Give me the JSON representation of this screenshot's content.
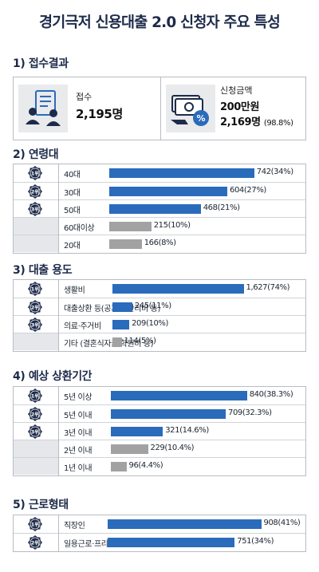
{
  "title": "경기극저 신용대출 2.0 신청자 주요 특성",
  "section1": {
    "title": "1) 접수결과",
    "receipt_label": "접수",
    "receipt_value": "2,195명",
    "amount_label": "신청금액",
    "amount_value": "200만원",
    "amount_count": "2,169명",
    "amount_pct": "(98.8%)"
  },
  "chart_data": [
    {
      "type": "bar",
      "title": "2) 연령대",
      "categories": [
        "40대",
        "30대",
        "50대",
        "60대이상",
        "20대"
      ],
      "values": [
        742,
        604,
        468,
        215,
        166
      ],
      "percents": [
        34,
        27,
        21,
        10,
        8
      ],
      "value_labels": [
        "742(34%)",
        "604(27%)",
        "468(21%)",
        "215(10%)",
        "166(8%)"
      ],
      "ranks": [
        "1위",
        "2위",
        "3위",
        "",
        ""
      ],
      "xlim": [
        0,
        800
      ]
    },
    {
      "type": "bar",
      "title": "3) 대출 용도",
      "categories": [
        "생활비",
        "대출상환 등(공과금·관리비 등)",
        "의료·주거비",
        "기타 (결혼식자금·학원비 등)"
      ],
      "values": [
        1627,
        245,
        209,
        114
      ],
      "percents": [
        74,
        11,
        10,
        5
      ],
      "value_labels": [
        "1,627(74%)",
        "245(11%)",
        "209(10%)",
        "114(5%)"
      ],
      "ranks": [
        "1위",
        "2위",
        "3위",
        ""
      ],
      "xlim": [
        0,
        1800
      ]
    },
    {
      "type": "bar",
      "title": "4) 예상 상환기간",
      "categories": [
        "5년 이상",
        "5년 이내",
        "3년 이내",
        "2년 이내",
        "1년 이내"
      ],
      "values": [
        840,
        709,
        321,
        229,
        96
      ],
      "percents": [
        38.3,
        32.3,
        14.6,
        10.4,
        4.4
      ],
      "value_labels": [
        "840(38.3%)",
        "709(32.3%)",
        "321(14.6%)",
        "229(10.4%)",
        "96(4.4%)"
      ],
      "ranks": [
        "1위",
        "2위",
        "3위",
        "",
        ""
      ],
      "xlim": [
        0,
        950
      ]
    },
    {
      "type": "bar",
      "title": "5) 근로형태",
      "categories": [
        "직장인",
        "일용근로·프리랜서 등"
      ],
      "values": [
        908,
        751
      ],
      "percents": [
        41,
        34
      ],
      "value_labels": [
        "908(41%)",
        "751(34%)"
      ],
      "ranks": [
        "1위",
        "2위"
      ],
      "xlim": [
        0,
        1000
      ]
    }
  ],
  "colors": {
    "bar_blue": "#2a6bbb",
    "bar_gray": "#a2a2a2",
    "medal": "#1d2b4a"
  },
  "icons": {
    "receipt": "people-document-icon",
    "amount": "money-percent-icon",
    "rank": "medal-icon"
  }
}
